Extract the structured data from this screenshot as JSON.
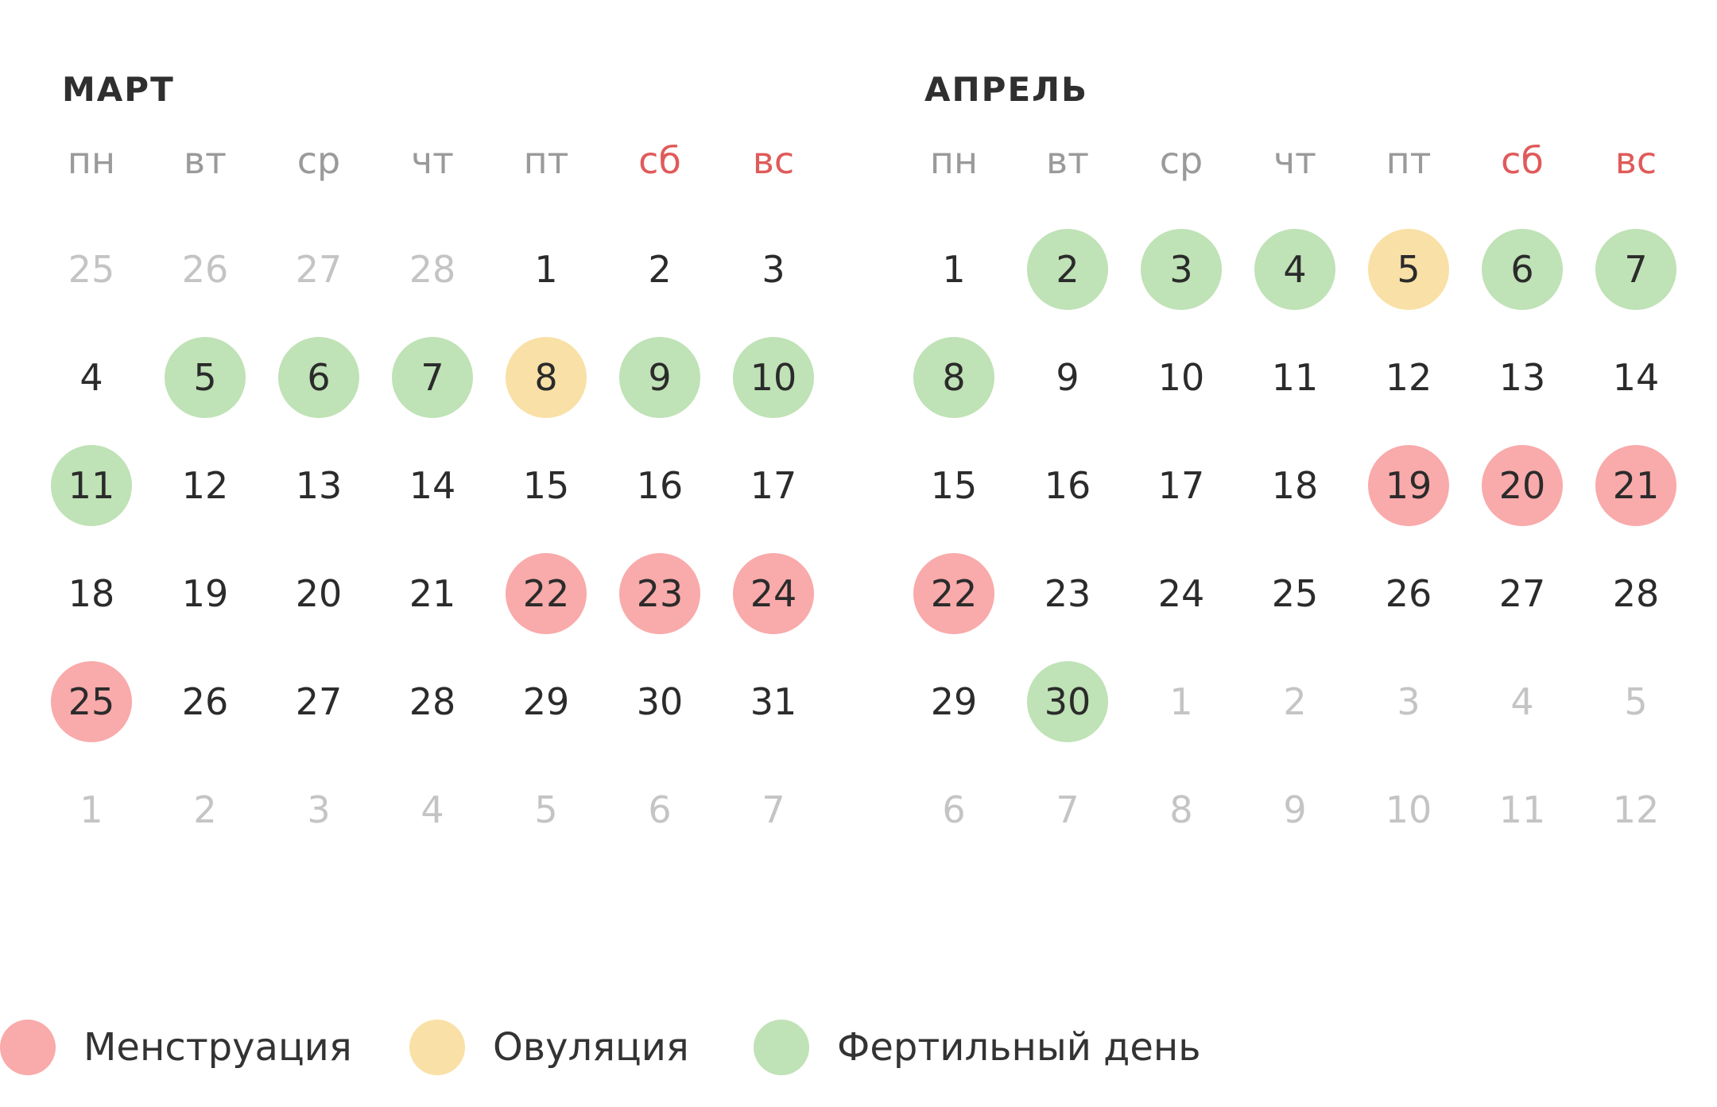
{
  "colors": {
    "menstruation": "#f9aaaa",
    "ovulation": "#f9e0a6",
    "fertile": "#bfe2b6",
    "weekend_header": "#e05a5a",
    "other_month": "#c4c4c4"
  },
  "months": [
    {
      "title": "МАРТ",
      "weekdays": [
        "пн",
        "вт",
        "ср",
        "чт",
        "пт",
        "сб",
        "вс"
      ],
      "weeks": [
        [
          {
            "d": "25",
            "t": "other"
          },
          {
            "d": "26",
            "t": "other"
          },
          {
            "d": "27",
            "t": "other"
          },
          {
            "d": "28",
            "t": "other"
          },
          {
            "d": "1",
            "t": ""
          },
          {
            "d": "2",
            "t": ""
          },
          {
            "d": "3",
            "t": ""
          }
        ],
        [
          {
            "d": "4",
            "t": ""
          },
          {
            "d": "5",
            "t": "fertile"
          },
          {
            "d": "6",
            "t": "fertile"
          },
          {
            "d": "7",
            "t": "fertile"
          },
          {
            "d": "8",
            "t": "ovulation"
          },
          {
            "d": "9",
            "t": "fertile"
          },
          {
            "d": "10",
            "t": "fertile"
          }
        ],
        [
          {
            "d": "11",
            "t": "fertile"
          },
          {
            "d": "12",
            "t": ""
          },
          {
            "d": "13",
            "t": ""
          },
          {
            "d": "14",
            "t": ""
          },
          {
            "d": "15",
            "t": ""
          },
          {
            "d": "16",
            "t": ""
          },
          {
            "d": "17",
            "t": ""
          }
        ],
        [
          {
            "d": "18",
            "t": ""
          },
          {
            "d": "19",
            "t": ""
          },
          {
            "d": "20",
            "t": ""
          },
          {
            "d": "21",
            "t": ""
          },
          {
            "d": "22",
            "t": "menstruation"
          },
          {
            "d": "23",
            "t": "menstruation"
          },
          {
            "d": "24",
            "t": "menstruation"
          }
        ],
        [
          {
            "d": "25",
            "t": "menstruation"
          },
          {
            "d": "26",
            "t": ""
          },
          {
            "d": "27",
            "t": ""
          },
          {
            "d": "28",
            "t": ""
          },
          {
            "d": "29",
            "t": ""
          },
          {
            "d": "30",
            "t": ""
          },
          {
            "d": "31",
            "t": ""
          }
        ],
        [
          {
            "d": "1",
            "t": "other"
          },
          {
            "d": "2",
            "t": "other"
          },
          {
            "d": "3",
            "t": "other"
          },
          {
            "d": "4",
            "t": "other"
          },
          {
            "d": "5",
            "t": "other"
          },
          {
            "d": "6",
            "t": "other"
          },
          {
            "d": "7",
            "t": "other"
          }
        ]
      ]
    },
    {
      "title": "АПРЕЛЬ",
      "weekdays": [
        "пн",
        "вт",
        "ср",
        "чт",
        "пт",
        "сб",
        "вс"
      ],
      "weeks": [
        [
          {
            "d": "1",
            "t": ""
          },
          {
            "d": "2",
            "t": "fertile"
          },
          {
            "d": "3",
            "t": "fertile"
          },
          {
            "d": "4",
            "t": "fertile"
          },
          {
            "d": "5",
            "t": "ovulation"
          },
          {
            "d": "6",
            "t": "fertile"
          },
          {
            "d": "7",
            "t": "fertile"
          }
        ],
        [
          {
            "d": "8",
            "t": "fertile"
          },
          {
            "d": "9",
            "t": ""
          },
          {
            "d": "10",
            "t": ""
          },
          {
            "d": "11",
            "t": ""
          },
          {
            "d": "12",
            "t": ""
          },
          {
            "d": "13",
            "t": ""
          },
          {
            "d": "14",
            "t": ""
          }
        ],
        [
          {
            "d": "15",
            "t": ""
          },
          {
            "d": "16",
            "t": ""
          },
          {
            "d": "17",
            "t": ""
          },
          {
            "d": "18",
            "t": ""
          },
          {
            "d": "19",
            "t": "menstruation"
          },
          {
            "d": "20",
            "t": "menstruation"
          },
          {
            "d": "21",
            "t": "menstruation"
          }
        ],
        [
          {
            "d": "22",
            "t": "menstruation"
          },
          {
            "d": "23",
            "t": ""
          },
          {
            "d": "24",
            "t": ""
          },
          {
            "d": "25",
            "t": ""
          },
          {
            "d": "26",
            "t": ""
          },
          {
            "d": "27",
            "t": ""
          },
          {
            "d": "28",
            "t": ""
          }
        ],
        [
          {
            "d": "29",
            "t": ""
          },
          {
            "d": "30",
            "t": "fertile"
          },
          {
            "d": "1",
            "t": "other"
          },
          {
            "d": "2",
            "t": "other"
          },
          {
            "d": "3",
            "t": "other"
          },
          {
            "d": "4",
            "t": "other"
          },
          {
            "d": "5",
            "t": "other"
          }
        ],
        [
          {
            "d": "6",
            "t": "other"
          },
          {
            "d": "7",
            "t": "other"
          },
          {
            "d": "8",
            "t": "other"
          },
          {
            "d": "9",
            "t": "other"
          },
          {
            "d": "10",
            "t": "other"
          },
          {
            "d": "11",
            "t": "other"
          },
          {
            "d": "12",
            "t": "other"
          }
        ]
      ]
    }
  ],
  "legend": [
    {
      "type": "menstruation",
      "label": "Менструация"
    },
    {
      "type": "ovulation",
      "label": "Овуляция"
    },
    {
      "type": "fertile",
      "label": "Фертильный день"
    }
  ]
}
